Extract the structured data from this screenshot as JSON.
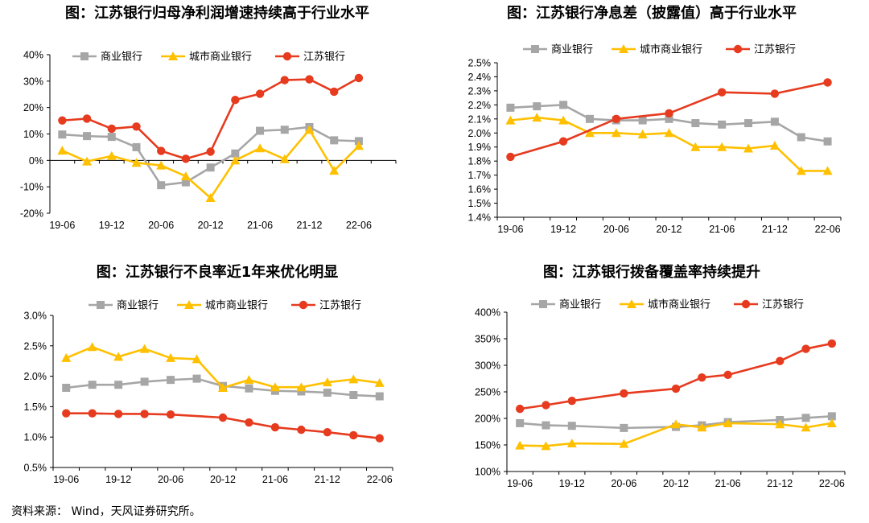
{
  "colors": {
    "commercial": "#a6a6a6",
    "city": "#ffc000",
    "jiangsu": "#e63b1f"
  },
  "source": "资料来源：  Wind，天风证券研究所。",
  "chart_data": [
    {
      "type": "line",
      "title": "图：江苏银行归母净利润增速持续高于行业水平",
      "x_labels": [
        "19-06",
        "19-12",
        "20-06",
        "20-12",
        "21-06",
        "21-12",
        "22-06"
      ],
      "y_ticks": [
        "40%",
        "30%",
        "20%",
        "10%",
        "0%",
        "-10%",
        "-20%"
      ],
      "ylim": [
        -20,
        40
      ],
      "n_points": 14,
      "series": [
        {
          "name": "商业银行",
          "key": "commercial",
          "marker": "square",
          "values": [
            9.8,
            9.2,
            8.9,
            5.0,
            -9.4,
            -8.3,
            -2.7,
            2.6,
            11.2,
            11.6,
            12.6,
            7.6,
            7.3,
            null
          ]
        },
        {
          "name": "城市商业银行",
          "key": "city",
          "marker": "triangle",
          "values": [
            3.7,
            -0.4,
            1.7,
            -0.9,
            -1.9,
            -6.0,
            -14.2,
            0.0,
            4.6,
            0.5,
            11.6,
            -3.9,
            5.5,
            null
          ]
        },
        {
          "name": "江苏银行",
          "key": "jiangsu",
          "marker": "circle",
          "values": [
            15.1,
            15.8,
            12.0,
            12.8,
            3.6,
            0.6,
            3.3,
            22.9,
            25.2,
            30.4,
            30.7,
            26.0,
            31.2,
            null
          ]
        }
      ]
    },
    {
      "type": "line",
      "title": "图：江苏银行净息差（披露值）高于行业水平",
      "x_labels": [
        "19-06",
        "19-12",
        "20-06",
        "20-12",
        "21-06",
        "21-12",
        "22-06"
      ],
      "y_ticks": [
        "2.5%",
        "2.4%",
        "2.3%",
        "2.2%",
        "2.1%",
        "2.0%",
        "1.9%",
        "1.8%",
        "1.7%",
        "1.6%",
        "1.5%",
        "1.4%"
      ],
      "ylim": [
        1.4,
        2.5
      ],
      "n_points": 13,
      "series": [
        {
          "name": "商业银行",
          "key": "commercial",
          "marker": "square",
          "values": [
            2.18,
            2.19,
            2.2,
            2.1,
            2.09,
            2.09,
            2.1,
            2.07,
            2.06,
            2.07,
            2.08,
            1.97,
            1.94
          ]
        },
        {
          "name": "城市商业银行",
          "key": "city",
          "marker": "triangle",
          "values": [
            2.09,
            2.11,
            2.09,
            2.0,
            2.0,
            1.99,
            2.0,
            1.9,
            1.9,
            1.89,
            1.91,
            1.73,
            1.73
          ]
        },
        {
          "name": "江苏银行",
          "key": "jiangsu",
          "marker": "circle",
          "values": [
            1.83,
            null,
            1.94,
            null,
            2.1,
            null,
            2.14,
            null,
            2.29,
            null,
            2.28,
            null,
            2.36
          ]
        }
      ]
    },
    {
      "type": "line",
      "title": "图：江苏银行不良率近1年来优化明显",
      "x_labels": [
        "19-06",
        "19-12",
        "20-06",
        "20-12",
        "21-06",
        "21-12",
        "22-06"
      ],
      "y_ticks": [
        "3.0%",
        "2.5%",
        "2.0%",
        "1.5%",
        "1.0%",
        "0.5%"
      ],
      "ylim": [
        0.5,
        3.0
      ],
      "n_points": 13,
      "series": [
        {
          "name": "商业银行",
          "key": "commercial",
          "marker": "square",
          "values": [
            1.81,
            1.86,
            1.86,
            1.91,
            1.94,
            1.96,
            1.84,
            1.8,
            1.76,
            1.75,
            1.73,
            1.69,
            1.67
          ]
        },
        {
          "name": "城市商业银行",
          "key": "city",
          "marker": "triangle",
          "values": [
            2.3,
            2.48,
            2.32,
            2.45,
            2.3,
            2.28,
            1.81,
            1.94,
            1.82,
            1.82,
            1.9,
            1.95,
            1.89
          ]
        },
        {
          "name": "江苏银行",
          "key": "jiangsu",
          "marker": "circle",
          "values": [
            1.39,
            1.39,
            1.38,
            1.38,
            1.37,
            null,
            1.32,
            1.24,
            1.16,
            1.12,
            1.08,
            1.03,
            0.98
          ]
        }
      ]
    },
    {
      "type": "line",
      "title": "图：江苏银行拨备覆盖率持续提升",
      "x_labels": [
        "19-06",
        "19-12",
        "20-06",
        "20-12",
        "21-06",
        "21-12",
        "22-06"
      ],
      "y_ticks": [
        "400%",
        "350%",
        "300%",
        "250%",
        "200%",
        "150%",
        "100%"
      ],
      "ylim": [
        100,
        400
      ],
      "n_points": 13,
      "series": [
        {
          "name": "商业银行",
          "key": "commercial",
          "marker": "square",
          "values": [
            191,
            187,
            186,
            null,
            182,
            null,
            184,
            187,
            193,
            null,
            197,
            201,
            204
          ]
        },
        {
          "name": "城市商业银行",
          "key": "city",
          "marker": "triangle",
          "values": [
            149,
            148,
            153,
            null,
            152,
            null,
            189,
            183,
            191,
            null,
            189,
            183,
            191
          ]
        },
        {
          "name": "江苏银行",
          "key": "jiangsu",
          "marker": "circle",
          "values": [
            218,
            225,
            233,
            null,
            247,
            null,
            256,
            277,
            282,
            null,
            308,
            331,
            341
          ]
        }
      ]
    }
  ]
}
